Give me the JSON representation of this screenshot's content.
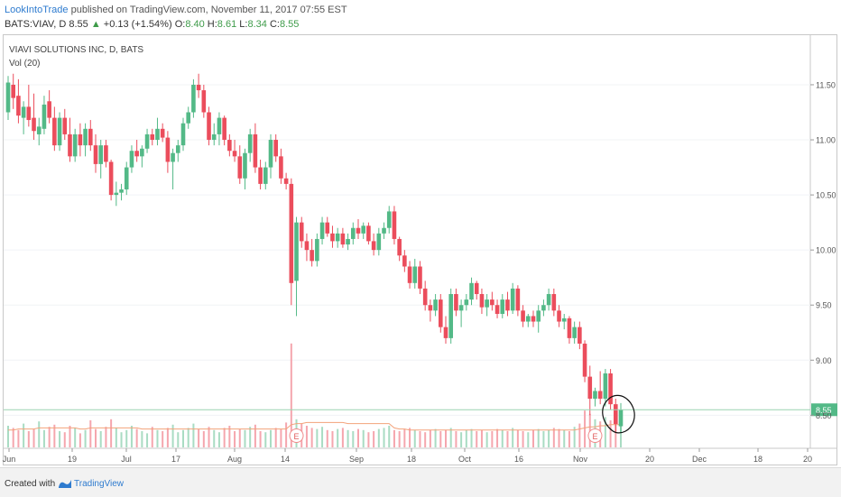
{
  "header": {
    "author": "LookIntoTrade",
    "published_text": "published on TradingView.com, November 11, 2017 07:55 EST"
  },
  "quote": {
    "symbol": "BATS:VIAV, D",
    "last": "8.55",
    "change": "+0.13 (+1.54%)",
    "open_label": "O:",
    "open": "8.40",
    "high_label": "H:",
    "high": "8.61",
    "low_label": "L:",
    "low": "8.34",
    "close_label": "C:",
    "close": "8.55"
  },
  "footer": {
    "created_with": "Created with",
    "brand": "TradingView"
  },
  "colors": {
    "up": "#53b987",
    "down": "#eb4d5c",
    "volume_up": "#a9dcc3",
    "volume_down": "#f5a6ae",
    "ma": "#f3a27a",
    "price_line": "#9ad3b1",
    "price_label_bg": "#53b987"
  },
  "chart_data": {
    "type": "candlestick",
    "title": "VIAVI SOLUTIONS INC, D, BATS",
    "volume_indicator": "Vol (20)",
    "y_ticks": [
      "11.50",
      "11.00",
      "10.50",
      "10.00",
      "9.50",
      "9.00",
      "8.55",
      "8.50"
    ],
    "x_ticks": [
      "Jun",
      "19",
      "Jul",
      "17",
      "Aug",
      "14",
      "Sep",
      "18",
      "Oct",
      "16",
      "Nov",
      "20",
      "Dec",
      "18",
      "20"
    ],
    "ylim": [
      8.2,
      11.95
    ],
    "last_price": 8.55,
    "last_price_label": "8.55",
    "earnings_markers": [
      "E",
      "E"
    ],
    "ohlc": [
      [
        11.25,
        11.58,
        11.18,
        11.52
      ],
      [
        11.5,
        11.6,
        11.28,
        11.38
      ],
      [
        11.4,
        11.55,
        11.15,
        11.22
      ],
      [
        11.2,
        11.35,
        11.05,
        11.3
      ],
      [
        11.3,
        11.5,
        11.12,
        11.18
      ],
      [
        11.2,
        11.42,
        11.0,
        11.08
      ],
      [
        11.05,
        11.2,
        10.95,
        11.12
      ],
      [
        11.1,
        11.4,
        11.05,
        11.32
      ],
      [
        11.35,
        11.45,
        11.15,
        11.2
      ],
      [
        11.2,
        11.3,
        10.9,
        10.95
      ],
      [
        10.95,
        11.25,
        10.9,
        11.2
      ],
      [
        11.2,
        11.28,
        11.0,
        11.05
      ],
      [
        11.05,
        11.2,
        10.8,
        10.85
      ],
      [
        10.85,
        11.1,
        10.8,
        11.05
      ],
      [
        11.05,
        11.15,
        10.85,
        10.95
      ],
      [
        10.95,
        11.15,
        10.85,
        11.1
      ],
      [
        11.1,
        11.18,
        10.9,
        10.95
      ],
      [
        10.95,
        11.05,
        10.7,
        10.78
      ],
      [
        10.78,
        11.0,
        10.65,
        10.95
      ],
      [
        10.95,
        11.0,
        10.75,
        10.8
      ],
      [
        10.8,
        10.82,
        10.45,
        10.5
      ],
      [
        10.5,
        10.62,
        10.4,
        10.52
      ],
      [
        10.52,
        10.6,
        10.45,
        10.55
      ],
      [
        10.55,
        10.8,
        10.5,
        10.75
      ],
      [
        10.75,
        10.95,
        10.7,
        10.9
      ],
      [
        10.9,
        11.0,
        10.8,
        10.85
      ],
      [
        10.85,
        10.95,
        10.75,
        10.92
      ],
      [
        10.92,
        11.1,
        10.88,
        11.05
      ],
      [
        11.05,
        11.1,
        10.95,
        11.0
      ],
      [
        11.0,
        11.2,
        10.95,
        11.1
      ],
      [
        11.1,
        11.15,
        10.98,
        11.02
      ],
      [
        11.02,
        11.08,
        10.7,
        10.8
      ],
      [
        10.8,
        10.92,
        10.55,
        10.88
      ],
      [
        10.88,
        11.0,
        10.8,
        10.95
      ],
      [
        10.95,
        11.2,
        10.9,
        11.15
      ],
      [
        11.15,
        11.3,
        11.1,
        11.25
      ],
      [
        11.25,
        11.55,
        11.2,
        11.5
      ],
      [
        11.5,
        11.6,
        11.38,
        11.45
      ],
      [
        11.45,
        11.5,
        11.2,
        11.25
      ],
      [
        11.25,
        11.3,
        10.95,
        11.0
      ],
      [
        11.0,
        11.15,
        10.95,
        11.05
      ],
      [
        11.05,
        11.25,
        10.95,
        11.2
      ],
      [
        11.2,
        11.22,
        10.95,
        11.0
      ],
      [
        11.0,
        11.05,
        10.85,
        10.9
      ],
      [
        10.9,
        11.0,
        10.8,
        10.85
      ],
      [
        10.85,
        10.95,
        10.6,
        10.65
      ],
      [
        10.65,
        10.92,
        10.55,
        10.88
      ],
      [
        10.88,
        11.1,
        10.8,
        11.05
      ],
      [
        11.05,
        11.15,
        10.7,
        10.75
      ],
      [
        10.75,
        10.82,
        10.55,
        10.6
      ],
      [
        10.6,
        10.8,
        10.55,
        10.75
      ],
      [
        10.75,
        11.05,
        10.65,
        11.0
      ],
      [
        11.0,
        11.05,
        10.8,
        10.85
      ],
      [
        10.85,
        10.92,
        10.6,
        10.65
      ],
      [
        10.65,
        10.7,
        10.55,
        10.6
      ],
      [
        10.6,
        10.65,
        9.5,
        9.7
      ],
      [
        9.72,
        10.3,
        9.4,
        10.25
      ],
      [
        10.25,
        10.3,
        10.02,
        10.08
      ],
      [
        10.08,
        10.15,
        9.9,
        10.0
      ],
      [
        10.0,
        10.1,
        9.85,
        9.9
      ],
      [
        9.9,
        10.15,
        9.85,
        10.1
      ],
      [
        10.1,
        10.3,
        10.05,
        10.25
      ],
      [
        10.25,
        10.3,
        10.12,
        10.15
      ],
      [
        10.15,
        10.22,
        10.02,
        10.08
      ],
      [
        10.08,
        10.2,
        10.02,
        10.15
      ],
      [
        10.15,
        10.2,
        10.02,
        10.05
      ],
      [
        10.05,
        10.15,
        10.0,
        10.1
      ],
      [
        10.1,
        10.25,
        10.05,
        10.2
      ],
      [
        10.2,
        10.28,
        10.1,
        10.15
      ],
      [
        10.15,
        10.25,
        10.1,
        10.22
      ],
      [
        10.22,
        10.25,
        10.05,
        10.08
      ],
      [
        10.08,
        10.15,
        9.95,
        10.0
      ],
      [
        10.0,
        10.2,
        9.95,
        10.15
      ],
      [
        10.15,
        10.25,
        10.1,
        10.2
      ],
      [
        10.2,
        10.4,
        10.15,
        10.35
      ],
      [
        10.35,
        10.4,
        10.05,
        10.1
      ],
      [
        10.1,
        10.12,
        9.9,
        9.95
      ],
      [
        9.95,
        10.0,
        9.8,
        9.85
      ],
      [
        9.85,
        9.9,
        9.65,
        9.7
      ],
      [
        9.7,
        9.92,
        9.65,
        9.85
      ],
      [
        9.85,
        9.9,
        9.6,
        9.65
      ],
      [
        9.65,
        9.72,
        9.45,
        9.5
      ],
      [
        9.5,
        9.55,
        9.35,
        9.45
      ],
      [
        9.45,
        9.6,
        9.4,
        9.55
      ],
      [
        9.55,
        9.6,
        9.25,
        9.3
      ],
      [
        9.3,
        9.4,
        9.15,
        9.2
      ],
      [
        9.2,
        9.65,
        9.15,
        9.6
      ],
      [
        9.6,
        9.65,
        9.4,
        9.45
      ],
      [
        9.45,
        9.55,
        9.3,
        9.5
      ],
      [
        9.5,
        9.6,
        9.45,
        9.55
      ],
      [
        9.55,
        9.75,
        9.5,
        9.7
      ],
      [
        9.7,
        9.72,
        9.55,
        9.6
      ],
      [
        9.6,
        9.65,
        9.42,
        9.48
      ],
      [
        9.48,
        9.6,
        9.4,
        9.55
      ],
      [
        9.55,
        9.62,
        9.45,
        9.5
      ],
      [
        9.5,
        9.55,
        9.38,
        9.42
      ],
      [
        9.42,
        9.6,
        9.38,
        9.55
      ],
      [
        9.55,
        9.62,
        9.4,
        9.45
      ],
      [
        9.45,
        9.7,
        9.42,
        9.65
      ],
      [
        9.65,
        9.68,
        9.4,
        9.45
      ],
      [
        9.45,
        9.5,
        9.3,
        9.35
      ],
      [
        9.35,
        9.42,
        9.3,
        9.4
      ],
      [
        9.4,
        9.45,
        9.3,
        9.35
      ],
      [
        9.35,
        9.5,
        9.25,
        9.45
      ],
      [
        9.45,
        9.55,
        9.4,
        9.5
      ],
      [
        9.5,
        9.65,
        9.45,
        9.6
      ],
      [
        9.6,
        9.65,
        9.4,
        9.45
      ],
      [
        9.45,
        9.5,
        9.3,
        9.35
      ],
      [
        9.35,
        9.42,
        9.28,
        9.38
      ],
      [
        9.38,
        9.4,
        9.15,
        9.2
      ],
      [
        9.2,
        9.35,
        9.15,
        9.3
      ],
      [
        9.3,
        9.35,
        9.1,
        9.15
      ],
      [
        9.15,
        9.18,
        8.8,
        8.85
      ],
      [
        8.85,
        8.95,
        8.5,
        8.65
      ],
      [
        8.65,
        8.75,
        8.58,
        8.72
      ],
      [
        8.72,
        8.9,
        8.6,
        8.65
      ],
      [
        8.65,
        8.92,
        8.58,
        8.88
      ],
      [
        8.88,
        8.92,
        8.55,
        8.6
      ],
      [
        8.6,
        8.65,
        8.35,
        8.42
      ],
      [
        8.4,
        8.61,
        8.34,
        8.55
      ]
    ],
    "volume": [
      2.0,
      1.8,
      1.6,
      2.2,
      1.5,
      1.7,
      2.4,
      1.6,
      1.9,
      2.1,
      1.5,
      1.4,
      2.0,
      1.8,
      1.3,
      1.6,
      2.5,
      1.7,
      1.5,
      1.9,
      2.6,
      1.8,
      1.4,
      1.6,
      2.0,
      1.7,
      1.5,
      1.3,
      1.9,
      1.6,
      1.5,
      1.8,
      2.1,
      1.4,
      1.6,
      1.8,
      2.2,
      1.7,
      1.5,
      1.9,
      1.6,
      1.4,
      1.8,
      2.0,
      1.5,
      1.7,
      1.6,
      1.9,
      2.1,
      1.5,
      1.4,
      1.6,
      1.8,
      1.7,
      2.3,
      9.6,
      2.6,
      2.2,
      2.0,
      1.8,
      1.7,
      1.9,
      1.6,
      1.5,
      1.7,
      1.8,
      1.6,
      1.5,
      1.7,
      1.6,
      1.4,
      1.5,
      1.7,
      1.8,
      2.0,
      1.6,
      1.5,
      1.7,
      1.8,
      1.6,
      1.5,
      1.4,
      1.6,
      1.7,
      1.5,
      1.6,
      1.8,
      1.5,
      1.4,
      1.6,
      1.7,
      1.5,
      1.6,
      1.4,
      1.5,
      1.7,
      1.6,
      1.5,
      1.8,
      1.6,
      1.5,
      1.4,
      1.6,
      1.7,
      1.5,
      1.6,
      1.8,
      1.7,
      1.6,
      1.5,
      1.9,
      2.2,
      3.4,
      3.1,
      2.6,
      2.4,
      2.8,
      2.5,
      2.2,
      2.0
    ],
    "volume_ma": [
      1.6,
      1.6,
      1.7,
      1.7,
      1.7,
      1.7,
      1.8,
      1.8,
      1.8,
      1.8,
      1.8,
      1.8,
      1.8,
      1.8,
      1.7,
      1.7,
      1.8,
      1.8,
      1.8,
      1.8,
      1.8,
      1.8,
      1.8,
      1.8,
      1.8,
      1.8,
      1.7,
      1.7,
      1.7,
      1.7,
      1.7,
      1.7,
      1.7,
      1.7,
      1.7,
      1.7,
      1.7,
      1.7,
      1.7,
      1.7,
      1.7,
      1.7,
      1.7,
      1.7,
      1.7,
      1.7,
      1.7,
      1.7,
      1.7,
      1.7,
      1.7,
      1.7,
      1.7,
      1.7,
      1.7,
      2.1,
      2.2,
      2.2,
      2.3,
      2.3,
      2.3,
      2.3,
      2.3,
      2.3,
      2.3,
      2.3,
      2.2,
      2.2,
      2.2,
      2.2,
      2.2,
      2.2,
      2.2,
      2.2,
      2.2,
      1.8,
      1.7,
      1.7,
      1.6,
      1.6,
      1.6,
      1.6,
      1.6,
      1.6,
      1.6,
      1.6,
      1.6,
      1.6,
      1.6,
      1.6,
      1.6,
      1.6,
      1.6,
      1.6,
      1.6,
      1.6,
      1.6,
      1.6,
      1.6,
      1.6,
      1.6,
      1.6,
      1.6,
      1.6,
      1.6,
      1.6,
      1.6,
      1.6,
      1.6,
      1.6,
      1.6,
      1.7,
      1.8,
      1.9,
      1.9,
      2.0,
      2.0,
      2.1,
      2.1,
      2.1
    ]
  }
}
